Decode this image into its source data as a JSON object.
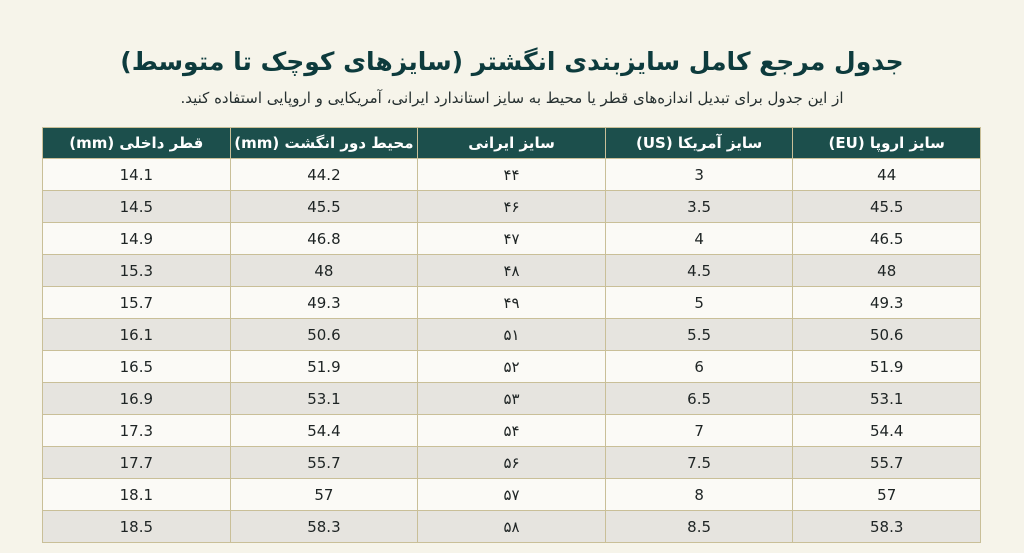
{
  "title": "جدول مرجع کامل سایزبندی انگشتر (سایزهای کوچک تا متوسط)",
  "subtitle": "از این جدول برای تبدیل اندازه‌های قطر یا محیط به سایز استاندارد ایرانی، آمریکایی و اروپایی استفاده کنید.",
  "table": {
    "headers": {
      "eu": "سایز اروپا (EU)",
      "us": "سایز آمریکا (US)",
      "iran": "سایز ایرانی",
      "circumference": "محیط دور انگشت (mm)",
      "diameter": "قطر داخلی (mm)"
    },
    "rows": [
      {
        "eu": "44",
        "us": "3",
        "iran": "۴۴",
        "circumference": "44.2",
        "diameter": "14.1"
      },
      {
        "eu": "45.5",
        "us": "3.5",
        "iran": "۴۶",
        "circumference": "45.5",
        "diameter": "14.5"
      },
      {
        "eu": "46.5",
        "us": "4",
        "iran": "۴۷",
        "circumference": "46.8",
        "diameter": "14.9"
      },
      {
        "eu": "48",
        "us": "4.5",
        "iran": "۴۸",
        "circumference": "48",
        "diameter": "15.3"
      },
      {
        "eu": "49.3",
        "us": "5",
        "iran": "۴۹",
        "circumference": "49.3",
        "diameter": "15.7"
      },
      {
        "eu": "50.6",
        "us": "5.5",
        "iran": "۵۱",
        "circumference": "50.6",
        "diameter": "16.1"
      },
      {
        "eu": "51.9",
        "us": "6",
        "iran": "۵۲",
        "circumference": "51.9",
        "diameter": "16.5"
      },
      {
        "eu": "53.1",
        "us": "6.5",
        "iran": "۵۳",
        "circumference": "53.1",
        "diameter": "16.9"
      },
      {
        "eu": "54.4",
        "us": "7",
        "iran": "۵۴",
        "circumference": "54.4",
        "diameter": "17.3"
      },
      {
        "eu": "55.7",
        "us": "7.5",
        "iran": "۵۶",
        "circumference": "55.7",
        "diameter": "17.7"
      },
      {
        "eu": "57",
        "us": "8",
        "iran": "۵۷",
        "circumference": "57",
        "diameter": "18.1"
      },
      {
        "eu": "58.3",
        "us": "8.5",
        "iran": "۵۸",
        "circumference": "58.3",
        "diameter": "18.5"
      }
    ]
  }
}
